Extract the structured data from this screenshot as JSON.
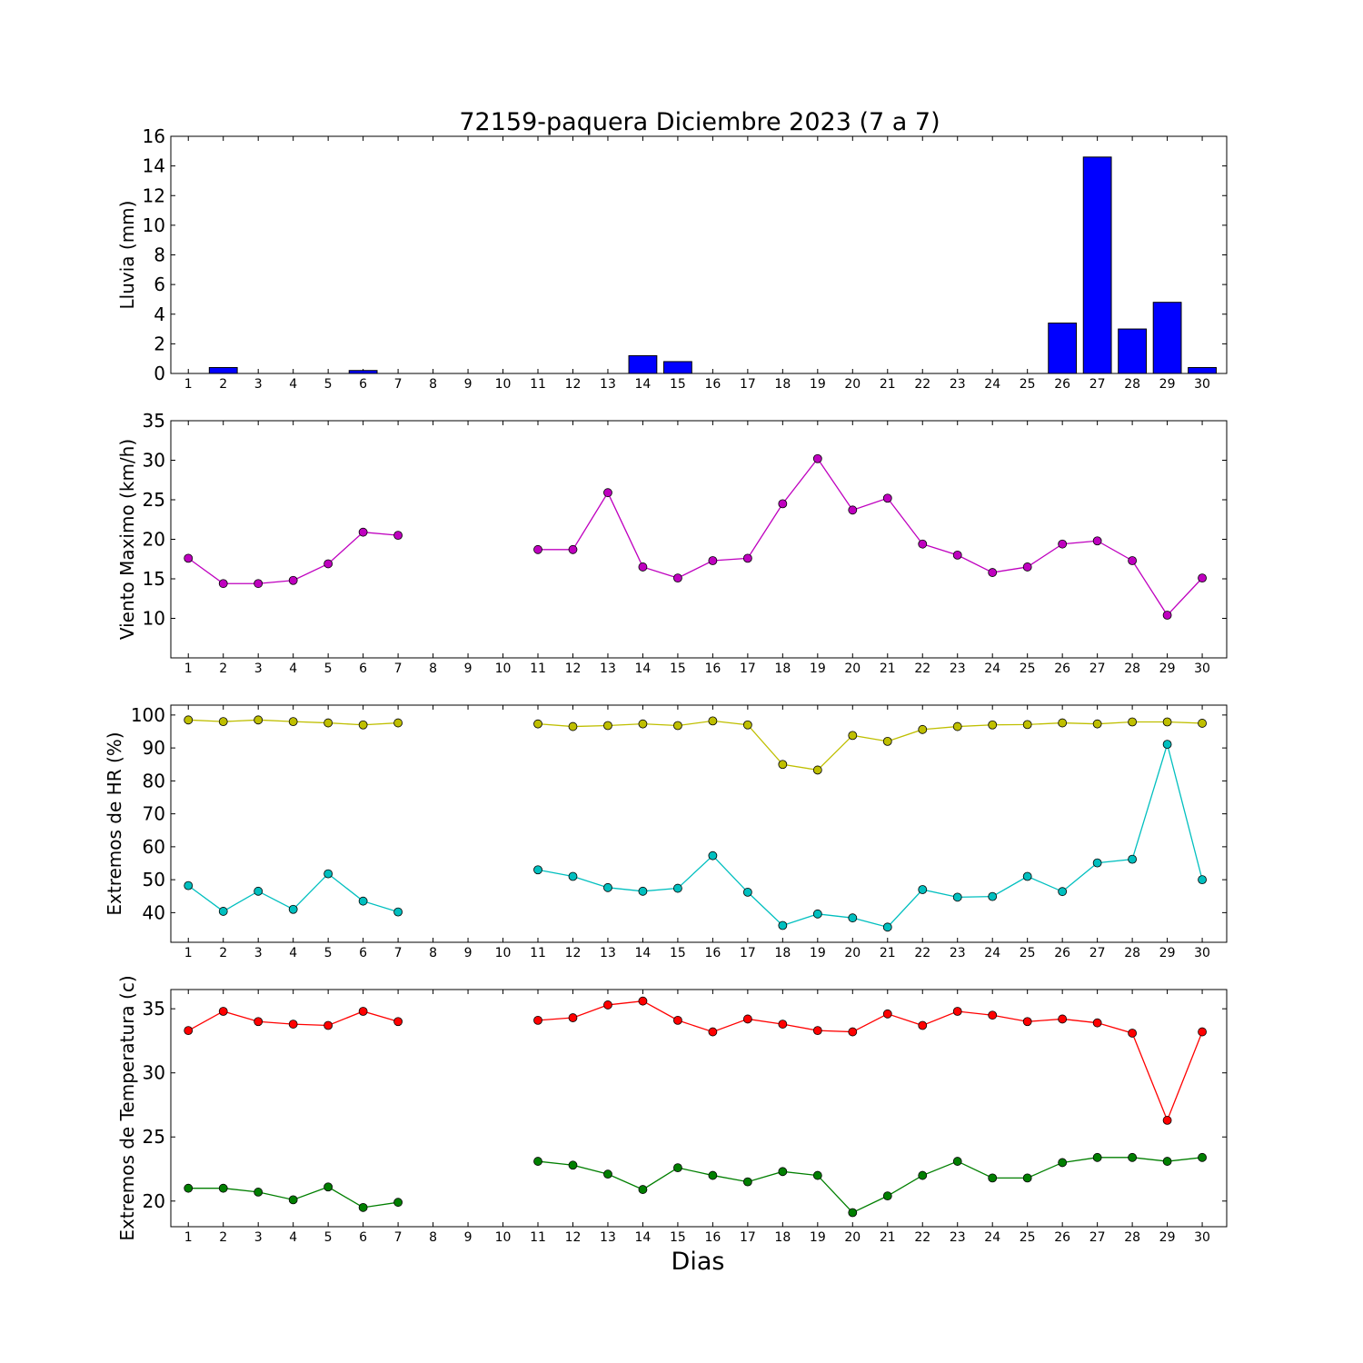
{
  "chart_data": {
    "title": "72159-paquera Diciembre 2023  (7 a 7)",
    "xlabel": "Dias",
    "days": [
      1,
      2,
      3,
      4,
      5,
      6,
      7,
      8,
      9,
      10,
      11,
      12,
      13,
      14,
      15,
      16,
      17,
      18,
      19,
      20,
      21,
      22,
      23,
      24,
      25,
      26,
      27,
      28,
      29,
      30
    ],
    "panels": [
      {
        "type": "bar",
        "ylabel": "Lluvia (mm)",
        "ylim": [
          0,
          16
        ],
        "yticks": [
          0,
          2,
          4,
          6,
          8,
          10,
          12,
          14,
          16
        ],
        "series": [
          {
            "color": "#0000ff",
            "values": [
              0,
              0.4,
              0,
              0,
              0,
              0.2,
              0,
              0,
              0,
              0,
              0,
              0,
              0,
              1.2,
              0.8,
              0,
              0,
              0,
              0,
              0,
              0,
              0,
              0,
              0,
              0,
              3.4,
              14.6,
              3.0,
              4.8,
              0.4
            ]
          }
        ]
      },
      {
        "type": "line",
        "ylabel": "Viento Maximo (km/h)",
        "ylim": [
          5,
          35
        ],
        "yticks": [
          10,
          15,
          20,
          25,
          30,
          35
        ],
        "series": [
          {
            "color": "#bf00bf",
            "values": [
              17.6,
              14.4,
              14.4,
              14.8,
              16.9,
              20.9,
              20.5,
              null,
              null,
              null,
              18.7,
              18.7,
              25.9,
              16.5,
              15.1,
              17.3,
              17.6,
              24.5,
              30.2,
              23.7,
              25.2,
              19.4,
              18.0,
              15.8,
              16.5,
              19.4,
              19.8,
              17.3,
              10.4,
              15.1
            ]
          }
        ]
      },
      {
        "type": "line",
        "ylabel": "Extremos de HR (%)",
        "ylim": [
          31,
          103
        ],
        "yticks": [
          40,
          50,
          60,
          70,
          80,
          90,
          100
        ],
        "series": [
          {
            "color": "#bfbf00",
            "values": [
              98.5,
              98.0,
              98.5,
              98.0,
              97.6,
              97.0,
              97.6,
              null,
              null,
              null,
              97.3,
              96.5,
              96.8,
              97.3,
              96.8,
              98.2,
              97.0,
              85.0,
              83.3,
              93.8,
              92.0,
              95.6,
              96.5,
              97.0,
              97.1,
              97.6,
              97.3,
              97.9,
              97.9,
              97.5
            ]
          },
          {
            "color": "#00bfbf",
            "values": [
              48.2,
              40.4,
              46.5,
              41.0,
              51.8,
              43.5,
              40.2,
              null,
              null,
              null,
              53.0,
              51.0,
              47.6,
              46.5,
              47.4,
              57.3,
              46.2,
              36.1,
              39.6,
              38.4,
              35.6,
              47.0,
              44.7,
              44.9,
              51.0,
              46.4,
              55.1,
              56.2,
              91.1,
              50.0
            ]
          }
        ]
      },
      {
        "type": "line",
        "ylabel": "Extremos de Temperatura (c)",
        "ylim": [
          18,
          36.5
        ],
        "yticks": [
          20,
          25,
          30,
          35
        ],
        "series": [
          {
            "color": "#ff0000",
            "values": [
              33.3,
              34.8,
              34.0,
              33.8,
              33.7,
              34.8,
              34.0,
              null,
              null,
              null,
              34.1,
              34.3,
              35.3,
              35.6,
              34.1,
              33.2,
              34.2,
              33.8,
              33.3,
              33.2,
              34.6,
              33.7,
              34.8,
              34.5,
              34.0,
              34.2,
              33.9,
              33.1,
              26.3,
              33.2
            ]
          },
          {
            "color": "#007f00",
            "values": [
              21.0,
              21.0,
              20.7,
              20.1,
              21.1,
              19.5,
              19.9,
              null,
              null,
              null,
              23.1,
              22.8,
              22.1,
              20.9,
              22.6,
              22.0,
              21.5,
              22.3,
              22.0,
              19.1,
              20.4,
              22.0,
              23.1,
              21.8,
              21.8,
              23.0,
              23.4,
              23.4,
              23.1,
              23.4
            ]
          }
        ]
      }
    ]
  }
}
